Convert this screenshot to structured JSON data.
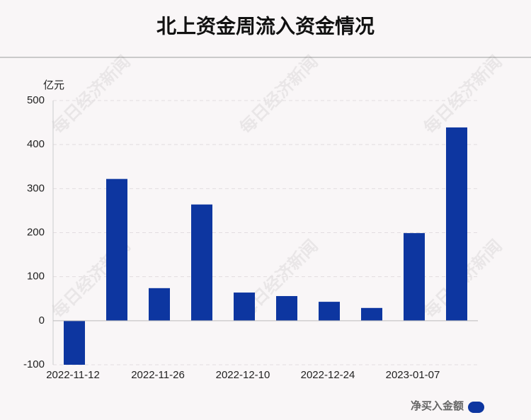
{
  "chart_data": {
    "type": "bar",
    "title": "北上资金周流入资金情况",
    "y_label": "亿元",
    "watermark": "每日经济新闻",
    "categories": [
      "2022-11-12",
      null,
      "2022-11-26",
      null,
      "2022-12-10",
      null,
      "2022-12-24",
      null,
      "2023-01-07",
      null
    ],
    "series": [
      {
        "name": "净买入金额",
        "color": "#0d36a0",
        "values": [
          -100,
          322,
          74,
          264,
          64,
          56,
          43,
          29,
          199,
          439
        ]
      }
    ],
    "ylim": [
      -100,
      500
    ],
    "yticks": [
      -100,
      0,
      100,
      200,
      300,
      400,
      500
    ],
    "grid": true,
    "legend": "bottom-right"
  }
}
